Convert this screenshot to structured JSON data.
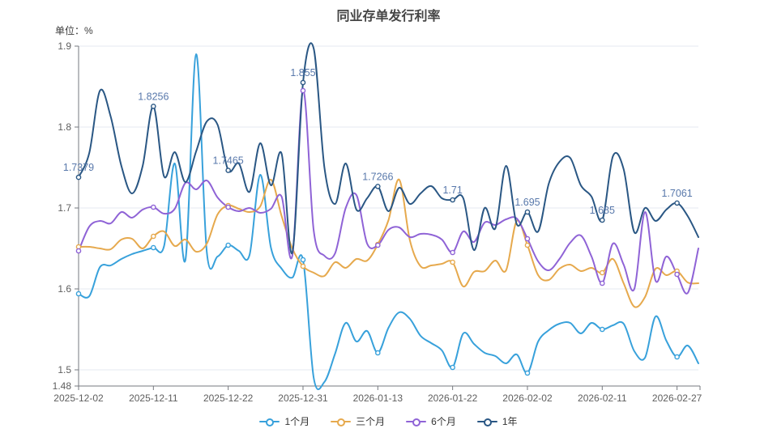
{
  "page": {
    "title": "同业存单发行利率",
    "unit_label": "单位：%"
  },
  "chart_data": {
    "type": "line",
    "title": "同业存单发行利率",
    "ylabel": "单位：%",
    "ylim": [
      1.48,
      1.9
    ],
    "y_ticks": [
      "1.9",
      "1.8",
      "1.7",
      "1.6",
      "1.5",
      "1.48"
    ],
    "y_tick_values": [
      1.9,
      1.8,
      1.7,
      1.6,
      1.5,
      1.48
    ],
    "grid_values": [
      1.9,
      1.8,
      1.7,
      1.6,
      1.5
    ],
    "x_tick_labels": [
      "2025-12-02",
      "2025-12-11",
      "2025-12-22",
      "2025-12-31",
      "2026-01-13",
      "2026-01-22",
      "2026-02-02",
      "2026-02-11",
      "2026-02-27"
    ],
    "x_tick_indices": [
      0,
      7,
      14,
      21,
      28,
      35,
      42,
      49,
      56
    ],
    "n_points": 59,
    "legend_position": "bottom",
    "grid_on": true,
    "colors": {
      "grid_line": "#e4e8f0",
      "axis_line": "#76797f",
      "axis_text": "#5e5e5e",
      "point_label": "#5878ab",
      "legend_text": "#333333",
      "title_text": "#454545",
      "background": "#ffffff"
    },
    "series": [
      {
        "name": "1个月",
        "color": "#38a1db",
        "values": [
          1.594,
          1.591,
          1.627,
          1.629,
          1.637,
          1.643,
          1.647,
          1.651,
          1.653,
          1.755,
          1.636,
          1.89,
          1.645,
          1.64,
          1.654,
          1.647,
          1.642,
          1.741,
          1.651,
          1.625,
          1.614,
          1.636,
          1.49,
          1.485,
          1.52,
          1.558,
          1.535,
          1.548,
          1.521,
          1.552,
          1.571,
          1.563,
          1.542,
          1.533,
          1.524,
          1.503,
          1.545,
          1.532,
          1.521,
          1.517,
          1.508,
          1.519,
          1.496,
          1.535,
          1.549,
          1.557,
          1.558,
          1.545,
          1.558,
          1.55,
          1.555,
          1.557,
          1.523,
          1.515,
          1.566,
          1.536,
          1.516,
          1.53,
          1.508
        ]
      },
      {
        "name": "三个月",
        "color": "#e6a94d",
        "values": [
          1.652,
          1.652,
          1.65,
          1.649,
          1.661,
          1.662,
          1.65,
          1.665,
          1.671,
          1.653,
          1.661,
          1.646,
          1.656,
          1.692,
          1.703,
          1.699,
          1.695,
          1.702,
          1.735,
          1.69,
          1.65,
          1.628,
          1.62,
          1.616,
          1.633,
          1.626,
          1.637,
          1.635,
          1.655,
          1.685,
          1.735,
          1.66,
          1.628,
          1.629,
          1.631,
          1.633,
          1.603,
          1.621,
          1.622,
          1.635,
          1.623,
          1.684,
          1.654,
          1.617,
          1.611,
          1.625,
          1.63,
          1.622,
          1.626,
          1.62,
          1.637,
          1.607,
          1.578,
          1.59,
          1.625,
          1.617,
          1.622,
          1.608,
          1.607
        ]
      },
      {
        "name": "6个月",
        "color": "#8f63d6",
        "values": [
          1.647,
          1.677,
          1.684,
          1.681,
          1.695,
          1.688,
          1.698,
          1.701,
          1.693,
          1.699,
          1.731,
          1.723,
          1.734,
          1.713,
          1.701,
          1.696,
          1.7,
          1.694,
          1.699,
          1.714,
          1.641,
          1.845,
          1.672,
          1.641,
          1.644,
          1.7,
          1.716,
          1.656,
          1.654,
          1.673,
          1.676,
          1.664,
          1.668,
          1.667,
          1.661,
          1.645,
          1.671,
          1.658,
          1.682,
          1.679,
          1.686,
          1.687,
          1.662,
          1.634,
          1.623,
          1.637,
          1.657,
          1.666,
          1.64,
          1.607,
          1.656,
          1.63,
          1.6,
          1.695,
          1.61,
          1.64,
          1.618,
          1.595,
          1.65
        ]
      },
      {
        "name": "1年",
        "color": "#2a5784",
        "values": [
          1.7379,
          1.768,
          1.845,
          1.813,
          1.752,
          1.718,
          1.752,
          1.8256,
          1.739,
          1.769,
          1.732,
          1.77,
          1.807,
          1.803,
          1.7465,
          1.755,
          1.72,
          1.78,
          1.728,
          1.767,
          1.645,
          1.855,
          1.897,
          1.75,
          1.705,
          1.755,
          1.698,
          1.712,
          1.7266,
          1.696,
          1.725,
          1.705,
          1.718,
          1.727,
          1.712,
          1.71,
          1.712,
          1.648,
          1.7,
          1.675,
          1.752,
          1.68,
          1.695,
          1.671,
          1.73,
          1.757,
          1.762,
          1.728,
          1.714,
          1.685,
          1.764,
          1.748,
          1.67,
          1.7,
          1.684,
          1.698,
          1.7061,
          1.69,
          1.664
        ],
        "point_labels": {
          "0": "1.7379",
          "7": "1.8256",
          "14": "1.7465",
          "21": "1.855",
          "28": "1.7266",
          "35": "1.71",
          "42": "1.695",
          "49": "1.685",
          "56": "1.7061"
        }
      }
    ],
    "legend": [
      "1个月",
      "三个月",
      "6个月",
      "1年"
    ]
  }
}
